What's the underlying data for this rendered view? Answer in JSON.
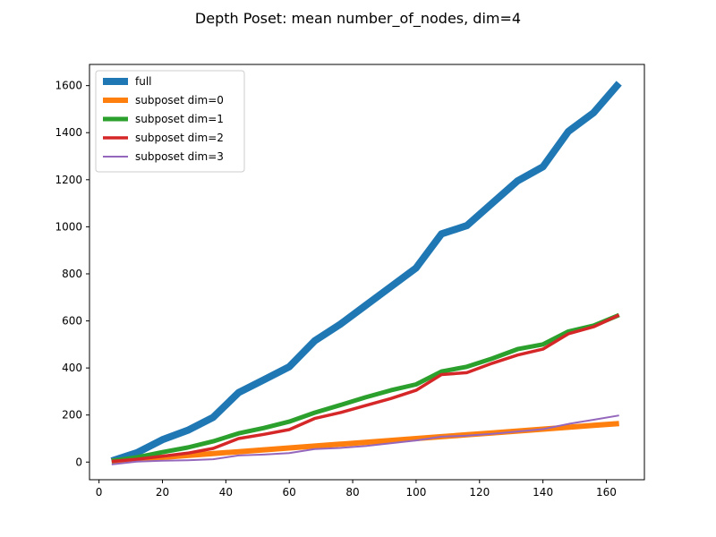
{
  "chart_data": {
    "type": "line",
    "title": "Depth Poset: mean number_of_nodes, dim=4",
    "xlabel": "",
    "ylabel": "",
    "xlim": [
      -3,
      172
    ],
    "ylim": [
      -75,
      1690
    ],
    "xticks": [
      0,
      20,
      40,
      60,
      80,
      100,
      120,
      140,
      160
    ],
    "yticks": [
      0,
      200,
      400,
      600,
      800,
      1000,
      1200,
      1400,
      1600
    ],
    "grid": false,
    "legend_position": "upper left",
    "x": [
      4,
      12,
      20,
      28,
      36,
      44,
      52,
      60,
      68,
      76,
      84,
      92,
      100,
      108,
      116,
      124,
      132,
      140,
      148,
      156,
      164
    ],
    "series": [
      {
        "name": "full",
        "color": "#1f77b4",
        "line_width": 8,
        "values": [
          5,
          40,
          95,
          135,
          190,
          295,
          350,
          405,
          515,
          585,
          665,
          745,
          825,
          970,
          1005,
          1100,
          1195,
          1255,
          1405,
          1485,
          1610
        ]
      },
      {
        "name": "subposet dim=0",
        "color": "#ff7f0e",
        "line_width": 6,
        "values": [
          4,
          12,
          20,
          28,
          36,
          44,
          52,
          60,
          68,
          76,
          84,
          92,
          100,
          108,
          116,
          124,
          132,
          140,
          148,
          156,
          164
        ]
      },
      {
        "name": "subposet dim=1",
        "color": "#2ca02c",
        "line_width": 5,
        "values": [
          5,
          20,
          42,
          62,
          88,
          122,
          145,
          172,
          210,
          242,
          275,
          305,
          330,
          385,
          405,
          440,
          480,
          500,
          555,
          580,
          625
        ]
      },
      {
        "name": "subposet dim=2",
        "color": "#d62728",
        "line_width": 3.5,
        "values": [
          3,
          12,
          25,
          38,
          58,
          100,
          118,
          138,
          185,
          210,
          240,
          270,
          305,
          372,
          380,
          420,
          455,
          480,
          545,
          575,
          625
        ]
      },
      {
        "name": "subposet dim=3",
        "color": "#9467bd",
        "line_width": 2,
        "values": [
          -10,
          2,
          6,
          8,
          12,
          28,
          32,
          38,
          55,
          60,
          68,
          80,
          92,
          108,
          112,
          120,
          130,
          140,
          162,
          180,
          198
        ]
      }
    ]
  }
}
